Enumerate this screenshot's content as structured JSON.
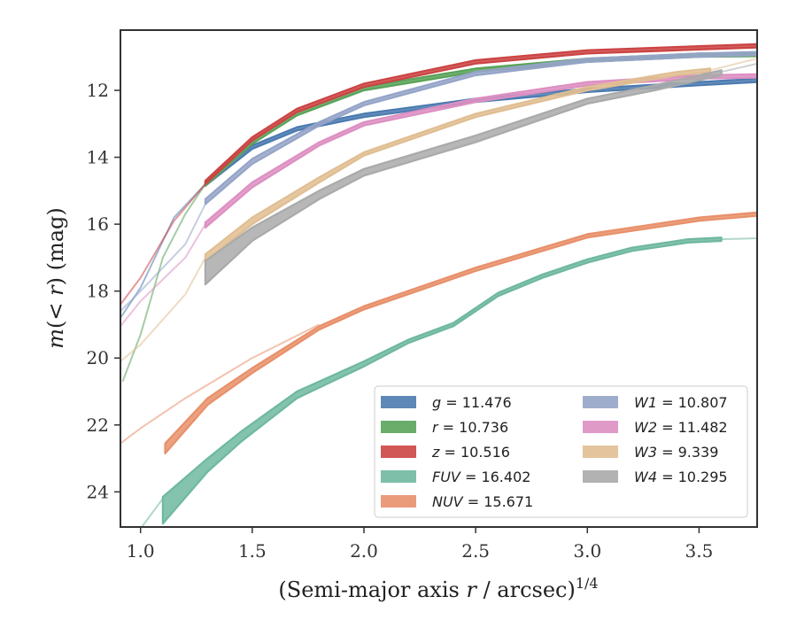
{
  "chart_data": {
    "type": "line",
    "xlabel": "(Semi-major axis r / arcsec)",
    "xlabel_parts": {
      "open": "(Semi-major axis ",
      "var": "r",
      "rest": " / arcsec)",
      "sup": "1/4"
    },
    "ylabel": "m(< r) (mag)",
    "ylabel_parts": {
      "var": "m",
      "rest": "(< ",
      "var2": "r",
      "rest2": ") (mag)"
    },
    "xlim": [
      0.91,
      3.76
    ],
    "ylim": [
      25.05,
      10.2
    ],
    "y_inverted": true,
    "xticks": [
      1.0,
      1.5,
      2.0,
      2.5,
      3.0,
      3.5
    ],
    "xtick_labels": [
      "1.0",
      "1.5",
      "2.0",
      "2.5",
      "3.0",
      "3.5"
    ],
    "yticks": [
      12,
      14,
      16,
      18,
      20,
      22,
      24
    ],
    "ytick_labels": [
      "12",
      "14",
      "16",
      "18",
      "20",
      "22",
      "24"
    ],
    "grid": false,
    "legend_position": "lower-right",
    "series": [
      {
        "name": "g",
        "value": "11.476",
        "color": "#4c7bb0",
        "faint": [
          [
            0.91,
            18.8
          ],
          [
            1.0,
            17.9
          ],
          [
            1.15,
            15.8
          ],
          [
            1.29,
            14.8
          ]
        ],
        "band": [
          [
            1.29,
            14.75,
            14.85
          ],
          [
            1.5,
            13.65,
            13.75
          ],
          [
            1.7,
            13.1,
            13.2
          ],
          [
            2.0,
            12.7,
            12.8
          ],
          [
            2.5,
            12.25,
            12.35
          ],
          [
            3.0,
            11.95,
            12.05
          ],
          [
            3.5,
            11.75,
            11.85
          ],
          [
            3.76,
            11.65,
            11.75
          ]
        ]
      },
      {
        "name": "r",
        "value": "10.736",
        "color": "#5aa35a",
        "faint": [
          [
            0.92,
            20.7
          ],
          [
            1.0,
            19.3
          ],
          [
            1.1,
            17.0
          ],
          [
            1.2,
            15.7
          ],
          [
            1.29,
            14.8
          ]
        ],
        "band": [
          [
            1.29,
            14.75,
            14.85
          ],
          [
            1.5,
            13.5,
            13.6
          ],
          [
            1.7,
            12.65,
            12.75
          ],
          [
            2.0,
            11.9,
            12.0
          ],
          [
            2.5,
            11.35,
            11.45
          ],
          [
            3.0,
            11.05,
            11.15
          ],
          [
            3.5,
            10.9,
            11.0
          ],
          [
            3.76,
            10.88,
            10.98
          ]
        ]
      },
      {
        "name": "z",
        "value": "10.516",
        "color": "#cc4444",
        "faint": [
          [
            0.91,
            18.4
          ],
          [
            1.0,
            17.6
          ],
          [
            1.15,
            15.9
          ],
          [
            1.29,
            14.8
          ]
        ],
        "band": [
          [
            1.29,
            14.7,
            14.8
          ],
          [
            1.5,
            13.4,
            13.5
          ],
          [
            1.7,
            12.55,
            12.65
          ],
          [
            2.0,
            11.8,
            11.9
          ],
          [
            2.5,
            11.1,
            11.2
          ],
          [
            3.0,
            10.8,
            10.9
          ],
          [
            3.5,
            10.68,
            10.78
          ],
          [
            3.76,
            10.62,
            10.72
          ]
        ]
      },
      {
        "name": "FUV",
        "value": "16.402",
        "color": "#6fb8a0",
        "faint": [
          [
            1.0,
            25.1
          ],
          [
            1.1,
            24.2
          ]
        ],
        "band": [
          [
            1.1,
            24.15,
            24.95
          ],
          [
            1.3,
            23.0,
            23.4
          ],
          [
            1.45,
            22.2,
            22.5
          ],
          [
            1.7,
            21.0,
            21.2
          ],
          [
            2.0,
            20.1,
            20.25
          ],
          [
            2.2,
            19.45,
            19.55
          ],
          [
            2.4,
            18.95,
            19.05
          ],
          [
            2.6,
            18.05,
            18.15
          ],
          [
            2.8,
            17.5,
            17.6
          ],
          [
            3.0,
            17.05,
            17.15
          ],
          [
            3.2,
            16.7,
            16.8
          ],
          [
            3.45,
            16.45,
            16.55
          ],
          [
            3.6,
            16.4,
            16.5
          ]
        ],
        "tail": [
          [
            3.6,
            16.45
          ],
          [
            3.76,
            16.42
          ]
        ]
      },
      {
        "name": "NUV",
        "value": "15.671",
        "color": "#e8906a",
        "faint": [
          [
            0.91,
            22.55
          ],
          [
            1.0,
            22.1
          ],
          [
            1.2,
            21.2
          ],
          [
            1.5,
            20.0
          ],
          [
            1.8,
            19.0
          ]
        ],
        "band": [
          [
            1.11,
            22.55,
            22.85
          ],
          [
            1.3,
            21.2,
            21.4
          ],
          [
            1.5,
            20.3,
            20.45
          ],
          [
            1.8,
            19.05,
            19.15
          ],
          [
            2.0,
            18.45,
            18.55
          ],
          [
            2.5,
            17.3,
            17.4
          ],
          [
            3.0,
            16.3,
            16.4
          ],
          [
            3.5,
            15.8,
            15.9
          ],
          [
            3.76,
            15.65,
            15.75
          ]
        ]
      },
      {
        "name": "W1",
        "value": "10.807",
        "color": "#95a4c8",
        "faint": [
          [
            0.91,
            18.6
          ],
          [
            1.0,
            18.0
          ],
          [
            1.2,
            16.6
          ],
          [
            1.29,
            15.4
          ]
        ],
        "band": [
          [
            1.29,
            15.25,
            15.4
          ],
          [
            1.5,
            14.05,
            14.2
          ],
          [
            1.8,
            12.95,
            13.05
          ],
          [
            2.0,
            12.35,
            12.45
          ],
          [
            2.5,
            11.45,
            11.55
          ],
          [
            3.0,
            11.05,
            11.15
          ],
          [
            3.5,
            10.9,
            11.0
          ],
          [
            3.76,
            10.85,
            10.95
          ]
        ]
      },
      {
        "name": "W2",
        "value": "11.482",
        "color": "#dd8fc2",
        "faint": [
          [
            0.91,
            19.05
          ],
          [
            1.0,
            18.3
          ],
          [
            1.2,
            17.0
          ],
          [
            1.29,
            16.0
          ]
        ],
        "band": [
          [
            1.29,
            15.95,
            16.1
          ],
          [
            1.5,
            14.75,
            14.9
          ],
          [
            1.8,
            13.55,
            13.65
          ],
          [
            2.0,
            12.95,
            13.05
          ],
          [
            2.5,
            12.25,
            12.35
          ],
          [
            3.0,
            11.75,
            11.85
          ],
          [
            3.5,
            11.55,
            11.65
          ],
          [
            3.76,
            11.52,
            11.62
          ]
        ]
      },
      {
        "name": "W3",
        "value": "9.339",
        "color": "#e0be92",
        "faint": [
          [
            0.91,
            20.1
          ],
          [
            1.0,
            19.6
          ],
          [
            1.2,
            18.1
          ],
          [
            1.29,
            17.0
          ]
        ],
        "band": [
          [
            1.29,
            16.9,
            17.1
          ],
          [
            1.5,
            15.8,
            16.0
          ],
          [
            1.8,
            14.6,
            14.75
          ],
          [
            2.0,
            13.85,
            13.95
          ],
          [
            2.5,
            12.7,
            12.8
          ],
          [
            3.0,
            11.9,
            12.0
          ],
          [
            3.4,
            11.45,
            11.55
          ],
          [
            3.55,
            11.35,
            11.45
          ]
        ],
        "tail": [
          [
            3.55,
            11.4
          ],
          [
            3.76,
            11.05
          ]
        ]
      },
      {
        "name": "W4",
        "value": "10.295",
        "color": "#aaaaaa",
        "faint": [],
        "band": [
          [
            1.29,
            17.1,
            17.8
          ],
          [
            1.5,
            16.1,
            16.5
          ],
          [
            1.8,
            15.0,
            15.25
          ],
          [
            2.0,
            14.35,
            14.55
          ],
          [
            2.5,
            13.35,
            13.55
          ],
          [
            3.0,
            12.25,
            12.4
          ],
          [
            3.3,
            11.85,
            12.0
          ],
          [
            3.6,
            11.4,
            11.55
          ]
        ],
        "tail": [
          [
            3.6,
            11.45
          ],
          [
            3.76,
            11.2
          ]
        ]
      }
    ]
  }
}
